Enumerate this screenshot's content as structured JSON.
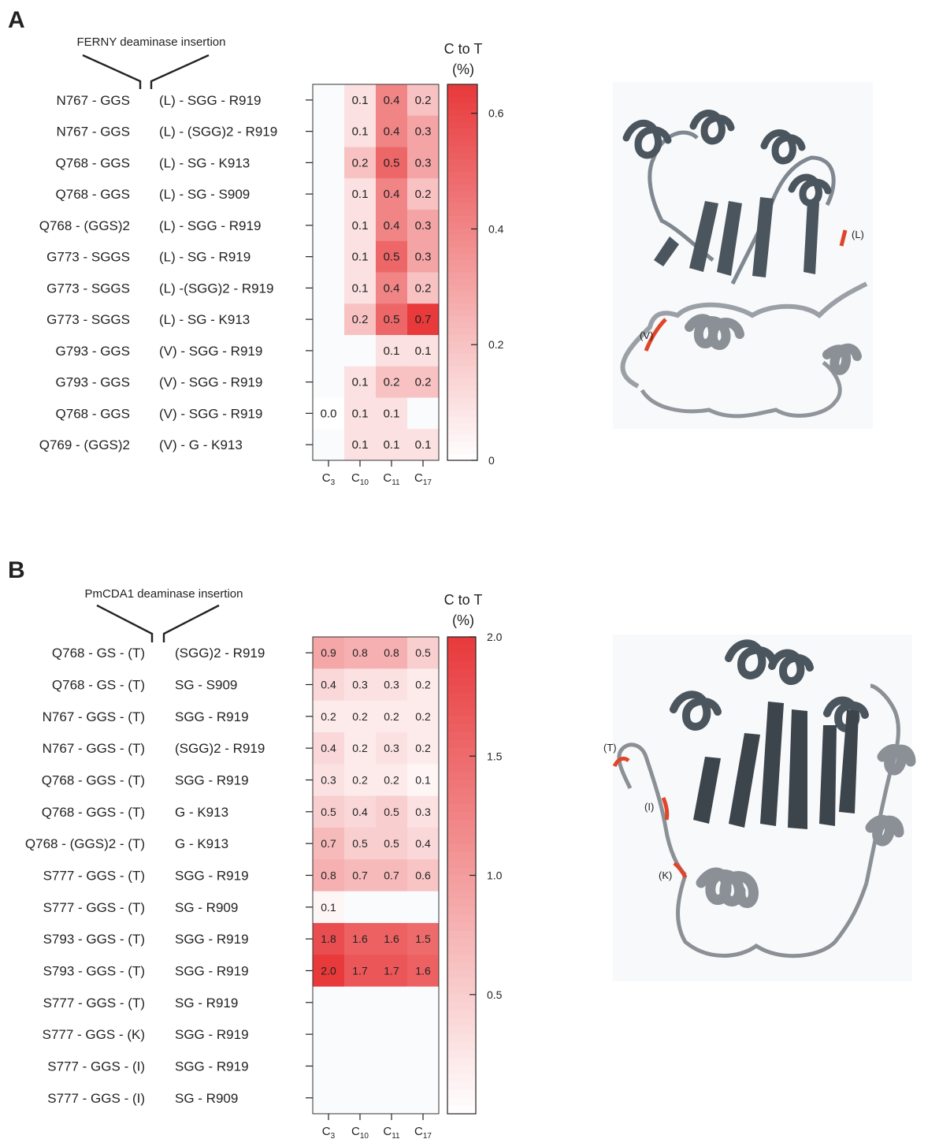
{
  "chart_data": [
    {
      "panel_label": "A",
      "type": "heatmap",
      "title": "FERNY deaminase insertion",
      "colorbar": {
        "title_line1": "C to T",
        "title_line2": "(%)",
        "min": 0,
        "max": 0.65,
        "ticks": [
          0,
          0.2,
          0.4,
          0.6
        ],
        "tick_labels": [
          "0",
          "0.2",
          "0.4",
          "0.6"
        ],
        "low_color": "#ffffff",
        "high_color": "#e8393b"
      },
      "columns": [
        {
          "base": "C",
          "sub": "3"
        },
        {
          "base": "C",
          "sub": "10"
        },
        {
          "base": "C",
          "sub": "11"
        },
        {
          "base": "C",
          "sub": "17"
        }
      ],
      "rows": [
        {
          "left": "N767 - GGS",
          "right": "(L) - SGG - R919",
          "values": [
            null,
            0.1,
            0.4,
            0.2
          ]
        },
        {
          "left": "N767 - GGS",
          "right": "(L) - (SGG)2 - R919",
          "values": [
            null,
            0.1,
            0.4,
            0.3
          ]
        },
        {
          "left": "Q768 - GGS",
          "right": "(L) - SG - K913",
          "values": [
            null,
            0.2,
            0.5,
            0.3
          ]
        },
        {
          "left": "Q768 - GGS",
          "right": "(L) - SG - S909",
          "values": [
            null,
            0.1,
            0.4,
            0.2
          ]
        },
        {
          "left": "Q768 - (GGS)2",
          "right": "(L) - SGG - R919",
          "values": [
            null,
            0.1,
            0.4,
            0.3
          ]
        },
        {
          "left": "G773 - SGGS",
          "right": "(L) - SG - R919",
          "values": [
            null,
            0.1,
            0.5,
            0.3
          ]
        },
        {
          "left": "G773 - SGGS",
          "right": "(L) -(SGG)2 - R919",
          "values": [
            null,
            0.1,
            0.4,
            0.2
          ]
        },
        {
          "left": "G773 - SGGS",
          "right": "(L) - SG - K913",
          "values": [
            null,
            0.2,
            0.5,
            0.7
          ]
        },
        {
          "left": "G793 - GGS",
          "right": "(V) - SGG - R919",
          "values": [
            null,
            null,
            0.1,
            0.1
          ]
        },
        {
          "left": "G793 - GGS",
          "right": "(V) - SGG - R919",
          "values": [
            null,
            0.1,
            0.2,
            0.2
          ]
        },
        {
          "left": "Q768 - GGS",
          "right": "(V) - SGG - R919",
          "values": [
            0.0,
            0.1,
            0.1,
            null
          ]
        },
        {
          "left": "Q769 - (GGS)2",
          "right": "(V) - G - K913",
          "values": [
            null,
            0.1,
            0.1,
            0.1
          ]
        }
      ],
      "structure_labels": [
        "(L)",
        "(V)"
      ]
    },
    {
      "panel_label": "B",
      "type": "heatmap",
      "title": "PmCDA1 deaminase insertion",
      "colorbar": {
        "title_line1": "C to T",
        "title_line2": "(%)",
        "min": 0,
        "max": 2.0,
        "ticks": [
          0.5,
          1.0,
          1.5,
          2.0
        ],
        "tick_labels": [
          "0.5",
          "1.0",
          "1.5",
          "2.0"
        ],
        "low_color": "#ffffff",
        "high_color": "#e8393b"
      },
      "columns": [
        {
          "base": "C",
          "sub": "3"
        },
        {
          "base": "C",
          "sub": "10"
        },
        {
          "base": "C",
          "sub": "11"
        },
        {
          "base": "C",
          "sub": "17"
        }
      ],
      "rows": [
        {
          "left": "Q768 - GS - (T)",
          "right": "(SGG)2 - R919",
          "values": [
            0.9,
            0.8,
            0.8,
            0.5
          ]
        },
        {
          "left": "Q768 - GS - (T)",
          "right": "SG - S909",
          "values": [
            0.4,
            0.3,
            0.3,
            0.2
          ]
        },
        {
          "left": "N767 - GGS - (T)",
          "right": "SGG - R919",
          "values": [
            0.2,
            0.2,
            0.2,
            0.2
          ]
        },
        {
          "left": "N767 - GGS - (T)",
          "right": "(SGG)2 - R919",
          "values": [
            0.4,
            0.2,
            0.3,
            0.2
          ]
        },
        {
          "left": "Q768 - GGS - (T)",
          "right": "SGG - R919",
          "values": [
            0.3,
            0.2,
            0.2,
            0.1
          ]
        },
        {
          "left": "Q768 - GGS - (T)",
          "right": "G - K913",
          "values": [
            0.5,
            0.4,
            0.5,
            0.3
          ]
        },
        {
          "left": "Q768 - (GGS)2 - (T)",
          "right": "G - K913",
          "values": [
            0.7,
            0.5,
            0.5,
            0.4
          ]
        },
        {
          "left": "S777 - GGS - (T)",
          "right": "SGG - R919",
          "values": [
            0.8,
            0.7,
            0.7,
            0.6
          ]
        },
        {
          "left": "S777 - GGS - (T)",
          "right": "SG - R909",
          "values": [
            0.1,
            null,
            null,
            null
          ]
        },
        {
          "left": "S793 - GGS - (T)",
          "right": "SGG - R919",
          "values": [
            1.8,
            1.6,
            1.6,
            1.5
          ]
        },
        {
          "left": "S793 - GGS - (T)",
          "right": "SGG - R919",
          "values": [
            2.0,
            1.7,
            1.7,
            1.6
          ]
        },
        {
          "left": "S777 - GGS - (T)",
          "right": "SG - R919",
          "values": [
            null,
            null,
            null,
            null
          ]
        },
        {
          "left": "S777 - GGS - (K)",
          "right": "SGG - R919",
          "values": [
            null,
            null,
            null,
            null
          ]
        },
        {
          "left": "S777 - GGS - (I)",
          "right": "SGG - R919",
          "values": [
            null,
            null,
            null,
            null
          ]
        },
        {
          "left": "S777 - GGS - (I)",
          "right": "SG - R909",
          "values": [
            null,
            null,
            null,
            null
          ]
        }
      ],
      "structure_labels": [
        "(T)",
        "(I)",
        "(K)"
      ]
    }
  ]
}
